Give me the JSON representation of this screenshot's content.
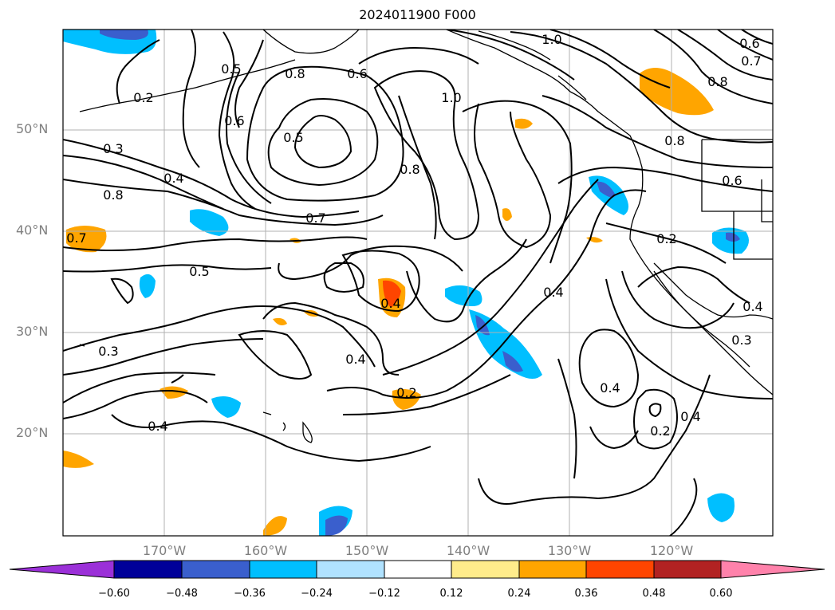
{
  "title": "2024011900 F000",
  "lat_labels": [
    "20°N",
    "30°N",
    "40°N",
    "50°N"
  ],
  "lon_labels": [
    "170°W",
    "160°W",
    "150°W",
    "140°W",
    "130°W",
    "120°W"
  ],
  "contour_labels": {
    "a": "0.2",
    "b": "0.5",
    "c": "0.8",
    "d": "0.6",
    "e": "1.0",
    "f": "0.6",
    "g": "0.7",
    "h": "0.8",
    "i": "0.6",
    "j": "0.5",
    "k": "0.3",
    "l": "0.4",
    "m": "0.8",
    "n": "0.7",
    "o": "0.8",
    "p": "1.0",
    "q": "0.8",
    "r": "0.6",
    "s": "0.2",
    "t": "0.7",
    "u": "0.5",
    "v": "0.4",
    "w": "0.4",
    "x": "0.4",
    "y": "0.3",
    "z": "0.4",
    "aa": "0.2",
    "ab": "0.4",
    "ac": "0.4",
    "ad": "0.2",
    "ae": "0.4",
    "af": "0.3"
  },
  "colorbar": {
    "ticks": [
      "−0.60",
      "−0.48",
      "−0.36",
      "−0.24",
      "−0.12",
      "0.12",
      "0.24",
      "0.36",
      "0.48",
      "0.60"
    ],
    "colors": [
      "#9b30d8",
      "#000099",
      "#3a5fcd",
      "#00bfff",
      "#b0e2ff",
      "#ffffff",
      "#ffec8b",
      "#ffa500",
      "#ff4500",
      "#b22222",
      "#ff82ab"
    ]
  }
}
